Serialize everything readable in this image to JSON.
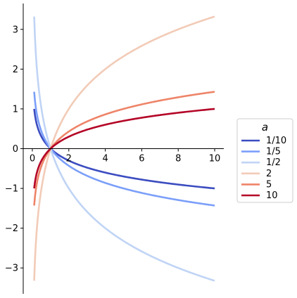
{
  "chart_data": {
    "type": "line",
    "title": "",
    "xlabel": "",
    "ylabel": "",
    "xlim": [
      -0.5,
      10.5
    ],
    "ylim": [
      -3.65,
      3.65
    ],
    "x_ticks": [
      0,
      2,
      4,
      6,
      8,
      10
    ],
    "y_ticks": [
      -3,
      -2,
      -1,
      0,
      1,
      2,
      3
    ],
    "grid": false,
    "spines": "centered-at-origin",
    "x_domain": [
      0.1,
      10
    ],
    "function": "log base a of x",
    "legend": {
      "title": "a",
      "placement": "right-outside"
    },
    "series": [
      {
        "name": "1/10",
        "a": 0.1,
        "color": "#3b4cc0",
        "x": [
          0.1,
          0.5,
          1,
          2,
          4,
          6,
          8,
          10
        ],
        "y": [
          1.0,
          0.301,
          0.0,
          -0.301,
          -0.602,
          -0.778,
          -0.903,
          -1.0
        ]
      },
      {
        "name": "1/5",
        "a": 0.2,
        "color": "#7b9ff9",
        "x": [
          0.1,
          0.5,
          1,
          2,
          4,
          6,
          8,
          10
        ],
        "y": [
          1.431,
          0.431,
          0.0,
          -0.431,
          -0.861,
          -1.113,
          -1.292,
          -1.431
        ]
      },
      {
        "name": "1/2",
        "a": 0.5,
        "color": "#c0d4f5",
        "x": [
          0.1,
          0.5,
          1,
          2,
          4,
          6,
          8,
          10
        ],
        "y": [
          3.322,
          1.0,
          0.0,
          -1.0,
          -2.0,
          -2.585,
          -3.0,
          -3.322
        ]
      },
      {
        "name": "2",
        "a": 2,
        "color": "#f2cbb7",
        "x": [
          0.1,
          0.5,
          1,
          2,
          4,
          6,
          8,
          10
        ],
        "y": [
          -3.322,
          -1.0,
          0.0,
          1.0,
          2.0,
          2.585,
          3.0,
          3.322
        ]
      },
      {
        "name": "5",
        "a": 5,
        "color": "#ee8468",
        "x": [
          0.1,
          0.5,
          1,
          2,
          4,
          6,
          8,
          10
        ],
        "y": [
          -1.431,
          -0.431,
          0.0,
          0.431,
          0.861,
          1.113,
          1.292,
          1.431
        ]
      },
      {
        "name": "10",
        "a": 10,
        "color": "#b40426",
        "x": [
          0.1,
          0.5,
          1,
          2,
          4,
          6,
          8,
          10
        ],
        "y": [
          -1.0,
          -0.301,
          0.0,
          0.301,
          0.602,
          0.778,
          0.903,
          1.0
        ]
      }
    ]
  }
}
